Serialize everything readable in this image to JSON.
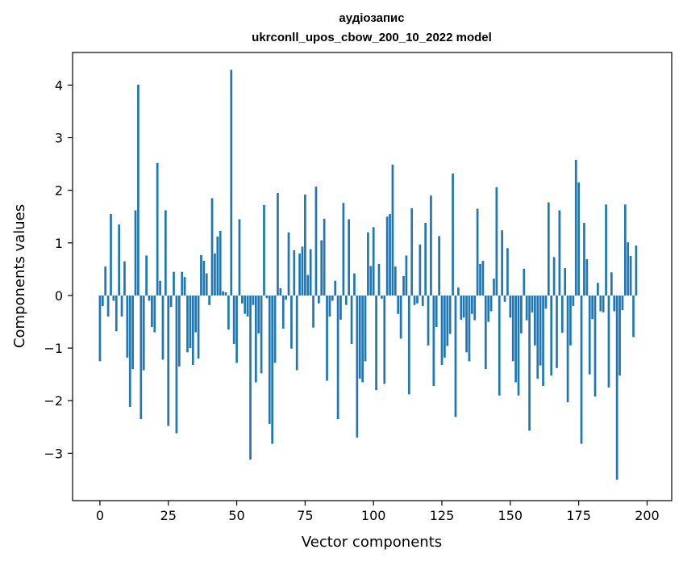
{
  "chart_data": {
    "type": "bar",
    "title_line1": "аудіозапис",
    "title_line2": "ukrconll_upos_cbow_200_10_2022 model",
    "xlabel": "Vector components",
    "ylabel": "Components values",
    "xlim": [
      -10,
      209
    ],
    "ylim": [
      -3.9,
      4.62
    ],
    "xticks": [
      0,
      25,
      50,
      75,
      100,
      125,
      150,
      175,
      200
    ],
    "yticks": [
      -3,
      -2,
      -1,
      0,
      1,
      2,
      3,
      4
    ],
    "ytick_labels": [
      "−3",
      "−2",
      "−1",
      "0",
      "1",
      "2",
      "3",
      "4"
    ],
    "grid": false,
    "bar_color": "#1f77b4",
    "values": [
      -1.25,
      -0.2,
      0.55,
      -0.4,
      1.55,
      -0.1,
      -0.68,
      1.35,
      -0.4,
      0.65,
      -1.18,
      -2.12,
      -1.4,
      1.62,
      4.01,
      -2.35,
      -1.42,
      0.76,
      -0.1,
      -0.6,
      -0.7,
      2.52,
      0.28,
      -1.22,
      1.62,
      -2.48,
      -0.22,
      0.45,
      -2.62,
      -1.35,
      0.45,
      0.35,
      -1.08,
      -1.0,
      -1.32,
      -0.7,
      -1.2,
      0.77,
      0.66,
      0.42,
      -0.18,
      1.85,
      0.8,
      1.12,
      1.23,
      0.08,
      0.06,
      -0.65,
      4.29,
      -0.92,
      -1.28,
      1.45,
      -0.15,
      -0.35,
      -0.4,
      -3.12,
      -0.18,
      -1.65,
      -0.72,
      -1.48,
      1.72,
      -0.05,
      -2.44,
      -2.82,
      -1.28,
      1.95,
      0.14,
      -0.63,
      -0.08,
      1.2,
      -1.01,
      0.86,
      -1.42,
      0.8,
      0.93,
      1.92,
      0.39,
      0.88,
      -0.61,
      2.07,
      -0.15,
      1.05,
      1.46,
      -1.62,
      -0.4,
      -0.1,
      0.28,
      -2.35,
      -0.46,
      1.76,
      -0.18,
      1.45,
      -0.92,
      0.42,
      -2.7,
      -1.58,
      -1.65,
      -1.25,
      1.2,
      0.56,
      1.3,
      -1.8,
      0.6,
      -0.06,
      -1.68,
      1.5,
      1.55,
      2.49,
      0.55,
      -0.35,
      -0.82,
      0.37,
      0.76,
      -1.88,
      1.66,
      -0.18,
      -0.15,
      0.97,
      -0.2,
      1.38,
      -0.95,
      1.9,
      -1.72,
      -0.6,
      1.13,
      -1.32,
      -1.18,
      -0.96,
      -0.73,
      2.32,
      -2.31,
      0.15,
      -0.46,
      -0.42,
      -1.08,
      -1.25,
      -0.35,
      -0.47,
      1.65,
      0.6,
      0.66,
      -1.4,
      -0.5,
      -0.3,
      0.32,
      2.06,
      -1.9,
      1.24,
      -0.12,
      0.9,
      -0.42,
      -1.25,
      -1.65,
      -1.9,
      -0.72,
      0.51,
      -0.47,
      -2.57,
      -0.32,
      -0.95,
      -1.58,
      -1.33,
      -1.72,
      -0.25,
      1.77,
      -1.52,
      0.73,
      -1.38,
      1.62,
      -0.71,
      0.52,
      -2.03,
      -0.95,
      -0.2,
      2.58,
      2.15,
      -2.82,
      1.38,
      0.69,
      -1.5,
      -0.45,
      -1.92,
      0.24,
      -0.3,
      -0.32,
      1.73,
      -1.75,
      0.44,
      -0.3,
      -3.5,
      -1.52,
      -0.28,
      1.73,
      1.01,
      0.75,
      -0.79,
      0.95
    ]
  }
}
